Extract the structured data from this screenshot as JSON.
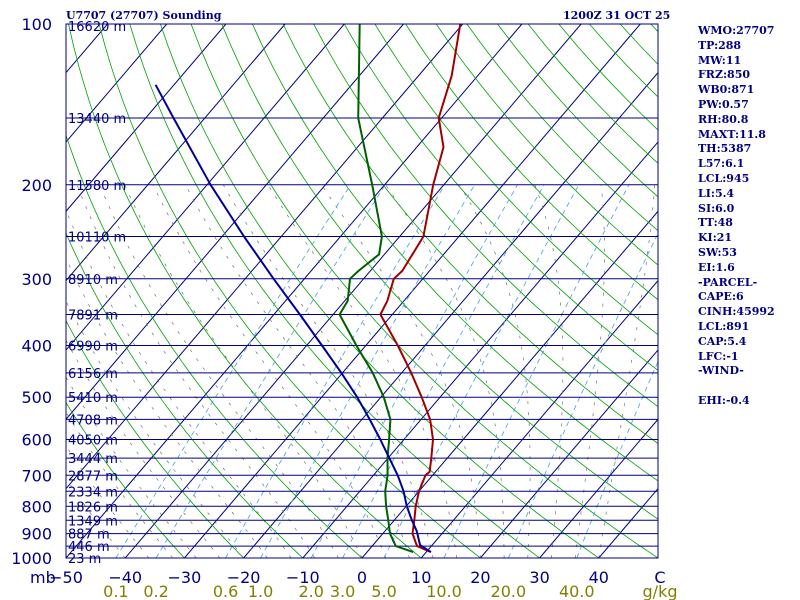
{
  "header": {
    "station_title": "U7707 (27707) Sounding",
    "valid_time": "1200Z 31 OCT 25"
  },
  "indices": [
    "WMO:27707",
    "TP:288",
    "MW:11",
    "FRZ:850",
    "WB0:871",
    "PW:0.57",
    "RH:80.8",
    "MAXT:11.8",
    "TH:5387",
    "L57:6.1",
    "LCL:945",
    "LI:5.4",
    "SI:6.0",
    "TT:48",
    "KI:21",
    "SW:53",
    "EI:1.6",
    "-PARCEL-",
    "CAPE:6",
    "CINH:45992",
    "LCL:891",
    "CAP:5.4",
    "LFC:-1",
    "-WIND-",
    "",
    "EHI:-0.4"
  ],
  "chart_data": {
    "type": "line",
    "title": "U7707 (27707) Sounding",
    "subtitle": "1200Z 31 OCT 25",
    "diagram": "Skew-T log-P",
    "ylabel": "mb",
    "ylim": [
      1000,
      100
    ],
    "xlim": [
      -50,
      50
    ],
    "pressure_ticks": [
      {
        "p": 100,
        "label": "100"
      },
      {
        "p": 200,
        "label": "200"
      },
      {
        "p": 300,
        "label": "300"
      },
      {
        "p": 400,
        "label": "400"
      },
      {
        "p": 500,
        "label": "500"
      },
      {
        "p": 600,
        "label": "600"
      },
      {
        "p": 700,
        "label": "700"
      },
      {
        "p": 800,
        "label": "800"
      },
      {
        "p": 900,
        "label": "900"
      },
      {
        "p": 1000,
        "label": "1000"
      }
    ],
    "temperature_ticks": [
      {
        "t": -40,
        "label": "−40"
      },
      {
        "t": -30,
        "label": "−30"
      },
      {
        "t": -20,
        "label": "−20"
      },
      {
        "t": -10,
        "label": "−10"
      },
      {
        "t": 0,
        "label": "0"
      },
      {
        "t": 10,
        "label": "10"
      },
      {
        "t": 20,
        "label": "20"
      },
      {
        "t": 30,
        "label": "30"
      },
      {
        "t": 40,
        "label": "40"
      }
    ],
    "unit_labels": {
      "pressure_unit": "mb",
      "left_temp": "−50",
      "temp_unit": "C",
      "mixing_ratio_unit": "g/kg"
    },
    "mixing_ratio_ticks": [
      {
        "w": 0.1,
        "label": "0.1"
      },
      {
        "w": 0.2,
        "label": "0.2"
      },
      {
        "w": 0.6,
        "label": "0.6"
      },
      {
        "w": 1.0,
        "label": "1.0"
      },
      {
        "w": 2.0,
        "label": "2.0"
      },
      {
        "w": 3.0,
        "label": "3.0"
      },
      {
        "w": 5.0,
        "label": "5.0"
      },
      {
        "w": 10.0,
        "label": "10.0"
      },
      {
        "w": 20.0,
        "label": "20.0"
      },
      {
        "w": 40.0,
        "label": "40.0"
      }
    ],
    "height_labels": [
      {
        "p": 100,
        "label": "16620 m"
      },
      {
        "p": 150,
        "label": "13440 m"
      },
      {
        "p": 200,
        "label": "11580 m"
      },
      {
        "p": 250,
        "label": "10110 m"
      },
      {
        "p": 300,
        "label": "8910 m"
      },
      {
        "p": 350,
        "label": "7891 m"
      },
      {
        "p": 400,
        "label": "6990 m"
      },
      {
        "p": 450,
        "label": "6156 m"
      },
      {
        "p": 500,
        "label": "5410 m"
      },
      {
        "p": 550,
        "label": "4708 m"
      },
      {
        "p": 600,
        "label": "4050 m"
      },
      {
        "p": 650,
        "label": "3444 m"
      },
      {
        "p": 700,
        "label": "2877 m"
      },
      {
        "p": 750,
        "label": "2334 m"
      },
      {
        "p": 800,
        "label": "1826 m"
      },
      {
        "p": 850,
        "label": "1349 m"
      },
      {
        "p": 900,
        "label": "887 m"
      },
      {
        "p": 950,
        "label": "446 m"
      },
      {
        "p": 1000,
        "label": "23 m"
      }
    ],
    "series": [
      {
        "name": "Temperature",
        "color": "#a00000",
        "points": [
          {
            "p": 975,
            "t": 10.8
          },
          {
            "p": 950,
            "t": 7.6
          },
          {
            "p": 900,
            "t": 5.0
          },
          {
            "p": 850,
            "t": 3.4
          },
          {
            "p": 800,
            "t": 1.6
          },
          {
            "p": 750,
            "t": 0.0
          },
          {
            "p": 700,
            "t": -1.2
          },
          {
            "p": 690,
            "t": -1.0
          },
          {
            "p": 650,
            "t": -2.7
          },
          {
            "p": 600,
            "t": -5.1
          },
          {
            "p": 550,
            "t": -8.5
          },
          {
            "p": 500,
            "t": -13.1
          },
          {
            "p": 450,
            "t": -18.4
          },
          {
            "p": 400,
            "t": -24.6
          },
          {
            "p": 350,
            "t": -32.0
          },
          {
            "p": 330,
            "t": -32.8
          },
          {
            "p": 300,
            "t": -34.9
          },
          {
            "p": 290,
            "t": -34.6
          },
          {
            "p": 250,
            "t": -36.0
          },
          {
            "p": 200,
            "t": -41.8
          },
          {
            "p": 170,
            "t": -45.5
          },
          {
            "p": 150,
            "t": -50.5
          },
          {
            "p": 125,
            "t": -54.4
          },
          {
            "p": 100,
            "t": -60.4
          }
        ]
      },
      {
        "name": "Dewpoint",
        "color": "#006000",
        "points": [
          {
            "p": 975,
            "t": 7.8
          },
          {
            "p": 950,
            "t": 4.0
          },
          {
            "p": 900,
            "t": 1.2
          },
          {
            "p": 850,
            "t": -1.0
          },
          {
            "p": 800,
            "t": -3.4
          },
          {
            "p": 750,
            "t": -5.7
          },
          {
            "p": 700,
            "t": -7.6
          },
          {
            "p": 650,
            "t": -10.1
          },
          {
            "p": 600,
            "t": -12.5
          },
          {
            "p": 550,
            "t": -15.2
          },
          {
            "p": 500,
            "t": -19.5
          },
          {
            "p": 450,
            "t": -24.9
          },
          {
            "p": 400,
            "t": -31.6
          },
          {
            "p": 350,
            "t": -38.9
          },
          {
            "p": 330,
            "t": -39.5
          },
          {
            "p": 300,
            "t": -42.3
          },
          {
            "p": 290,
            "t": -42.0
          },
          {
            "p": 270,
            "t": -40.9
          },
          {
            "p": 250,
            "t": -43.0
          },
          {
            "p": 200,
            "t": -52.1
          },
          {
            "p": 150,
            "t": -64.1
          },
          {
            "p": 100,
            "t": -77.4
          }
        ]
      },
      {
        "name": "Parcel path",
        "color": "#000099",
        "points": [
          {
            "p": 975,
            "t": 10.8
          },
          {
            "p": 945,
            "t": 7.9
          },
          {
            "p": 891,
            "t": 5.4
          },
          {
            "p": 850,
            "t": 3.0
          },
          {
            "p": 800,
            "t": 0.1
          },
          {
            "p": 750,
            "t": -2.6
          },
          {
            "p": 700,
            "t": -5.9
          },
          {
            "p": 650,
            "t": -9.8
          },
          {
            "p": 600,
            "t": -14.0
          },
          {
            "p": 550,
            "t": -18.7
          },
          {
            "p": 500,
            "t": -24.0
          },
          {
            "p": 450,
            "t": -30.2
          },
          {
            "p": 400,
            "t": -37.4
          },
          {
            "p": 350,
            "t": -45.6
          },
          {
            "p": 300,
            "t": -55.2
          },
          {
            "p": 250,
            "t": -66.3
          },
          {
            "p": 200,
            "t": -79.4
          },
          {
            "p": 150,
            "t": -95.3
          },
          {
            "p": 130,
            "t": -103.1
          }
        ]
      }
    ]
  }
}
